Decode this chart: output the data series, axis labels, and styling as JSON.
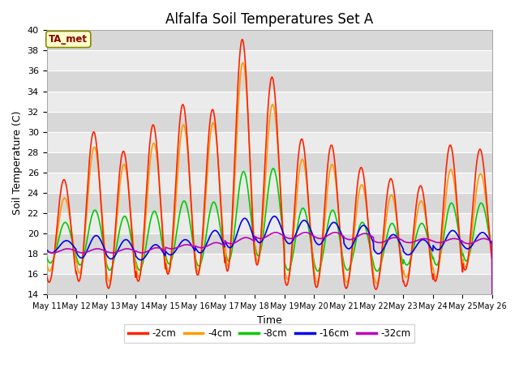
{
  "title": "Alfalfa Soil Temperatures Set A",
  "xlabel": "Time",
  "ylabel": "Soil Temperature (C)",
  "ylim": [
    14,
    40
  ],
  "yticks": [
    14,
    16,
    18,
    20,
    22,
    24,
    26,
    28,
    30,
    32,
    34,
    36,
    38,
    40
  ],
  "annotation_text": "TA_met",
  "annotation_color": "#880000",
  "annotation_bg": "#ffffcc",
  "annotation_border": "#888800",
  "series_colors": {
    "-2cm": "#ff2200",
    "-4cm": "#ff9900",
    "-8cm": "#00cc00",
    "-16cm": "#0000ee",
    "-32cm": "#bb00bb"
  },
  "legend_labels": [
    "-2cm",
    "-4cm",
    "-8cm",
    "-16cm",
    "-32cm"
  ],
  "x_tick_labels": [
    "May 11",
    "May 12",
    "May 13",
    "May 14",
    "May 15",
    "May 16",
    "May 17",
    "May 18",
    "May 19",
    "May 20",
    "May 21",
    "May 22",
    "May 23",
    "May 24",
    "May 25",
    "May 26"
  ],
  "fig_facecolor": "#ffffff",
  "plot_bg_light": "#ebebeb",
  "plot_bg_dark": "#d8d8d8",
  "grid_color": "#ffffff",
  "title_fontsize": 12,
  "peaks_2cm": [
    25.3,
    30.0,
    28.1,
    30.7,
    32.7,
    32.2,
    39.1,
    35.4,
    29.3,
    28.7,
    26.5,
    25.4,
    24.7,
    28.7,
    28.3
  ],
  "valleys_2cm": [
    15.2,
    15.3,
    14.6,
    15.3,
    16.0,
    15.9,
    16.3,
    16.9,
    14.9,
    14.7,
    14.6,
    14.5,
    14.8,
    15.3,
    16.4
  ],
  "peaks_4cm": [
    23.5,
    28.5,
    26.8,
    28.9,
    30.7,
    30.9,
    36.8,
    32.7,
    27.3,
    26.8,
    24.8,
    23.8,
    23.2,
    26.3,
    25.9
  ],
  "valleys_4cm": [
    16.3,
    16.1,
    15.3,
    15.7,
    16.2,
    16.2,
    16.8,
    17.2,
    15.5,
    15.2,
    15.2,
    15.1,
    15.7,
    15.7,
    16.7
  ],
  "peaks_8cm": [
    21.1,
    22.3,
    21.7,
    22.2,
    23.2,
    23.1,
    26.1,
    26.4,
    22.5,
    22.3,
    21.1,
    21.0,
    21.0,
    23.0,
    23.0
  ],
  "valleys_8cm": [
    17.1,
    16.9,
    16.4,
    16.4,
    17.0,
    16.8,
    17.3,
    17.8,
    16.4,
    16.3,
    16.4,
    16.3,
    16.9,
    16.9,
    17.3
  ],
  "peaks_16cm": [
    19.3,
    19.8,
    19.4,
    18.9,
    19.4,
    20.3,
    21.5,
    21.7,
    21.3,
    21.1,
    20.8,
    19.9,
    19.4,
    20.3,
    20.1
  ],
  "valleys_16cm": [
    18.1,
    17.6,
    17.5,
    17.4,
    17.9,
    18.1,
    18.6,
    19.1,
    19.0,
    18.9,
    18.5,
    18.0,
    17.9,
    18.4,
    18.5
  ],
  "peaks_32cm": [
    18.5,
    18.5,
    18.5,
    18.6,
    18.9,
    19.1,
    19.6,
    20.1,
    20.1,
    20.1,
    20.0,
    19.6,
    19.5,
    19.5,
    19.5
  ],
  "valleys_32cm": [
    18.1,
    18.1,
    18.1,
    18.1,
    18.5,
    18.6,
    19.0,
    19.5,
    19.5,
    19.5,
    19.4,
    19.1,
    19.1,
    19.1,
    19.0
  ],
  "phase_peak_2cm": 0.583,
  "phase_peak_4cm": 0.604,
  "phase_peak_8cm": 0.625,
  "phase_peak_16cm": 0.667,
  "phase_peak_32cm": 0.708
}
